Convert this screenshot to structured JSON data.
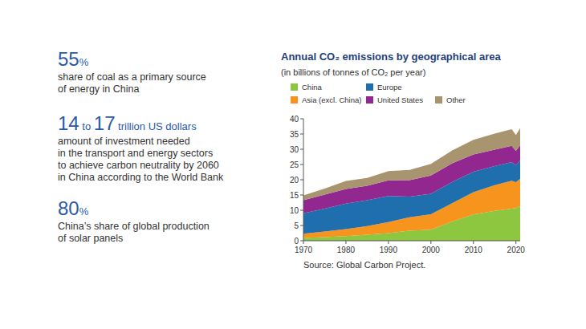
{
  "stats": [
    {
      "figure": "55",
      "unit": "%",
      "lines": [
        "share of coal as a primary source",
        "of energy in China"
      ]
    },
    {
      "figure": "14",
      "joiner": "to",
      "figure2": "17",
      "unit": "trillion US dollars",
      "lines": [
        "amount of investment needed",
        "in the transport and energy sectors",
        "to achieve carbon neutrality by 2060",
        "in China according to the World Bank"
      ]
    },
    {
      "figure": "80",
      "unit": "%",
      "lines": [
        "China’s share of global production",
        "of solar panels"
      ]
    }
  ],
  "chart_data": {
    "type": "area",
    "stacked": true,
    "title": "Annual CO₂ emissions by geographical area",
    "subtitle": "(in billions of tonnes of CO₂ per year)",
    "source": "Source: Global Carbon Project.",
    "legend": "top",
    "grid": false,
    "x": [
      1970,
      1975,
      1980,
      1985,
      1990,
      1995,
      2000,
      2005,
      2010,
      2015,
      2019,
      2020,
      2021
    ],
    "xlim": [
      1970,
      2021
    ],
    "xticks": [
      1970,
      1980,
      1990,
      2000,
      2010,
      2020
    ],
    "ylim": [
      0,
      40
    ],
    "yticks": [
      0,
      5,
      10,
      15,
      20,
      25,
      30,
      35,
      40
    ],
    "series": [
      {
        "name": "China",
        "color": "#8dc63f",
        "values": [
          0.9,
          1.2,
          1.5,
          2.0,
          2.5,
          3.3,
          3.6,
          6.3,
          8.6,
          9.8,
          10.5,
          10.7,
          11.3
        ]
      },
      {
        "name": "Asia (excl. China)",
        "color": "#f7941d",
        "values": [
          1.4,
          1.8,
          2.3,
          2.8,
          3.6,
          4.4,
          5.1,
          6.0,
          7.3,
          8.4,
          9.2,
          8.5,
          9.0
        ]
      },
      {
        "name": "Europe",
        "color": "#1f6fae",
        "values": [
          6.7,
          7.5,
          8.4,
          8.5,
          8.6,
          6.8,
          6.7,
          7.0,
          6.7,
          6.3,
          6.1,
          5.6,
          6.0
        ]
      },
      {
        "name": "United States",
        "color": "#92278f",
        "values": [
          4.3,
          4.6,
          4.8,
          4.7,
          5.1,
          5.4,
          6.0,
          6.1,
          5.7,
          5.4,
          5.3,
          4.7,
          5.0
        ]
      },
      {
        "name": "Other",
        "color": "#a8946f",
        "values": [
          1.6,
          2.0,
          2.6,
          2.6,
          3.0,
          3.3,
          3.8,
          4.2,
          4.8,
          5.2,
          5.5,
          5.2,
          5.6
        ]
      }
    ]
  }
}
